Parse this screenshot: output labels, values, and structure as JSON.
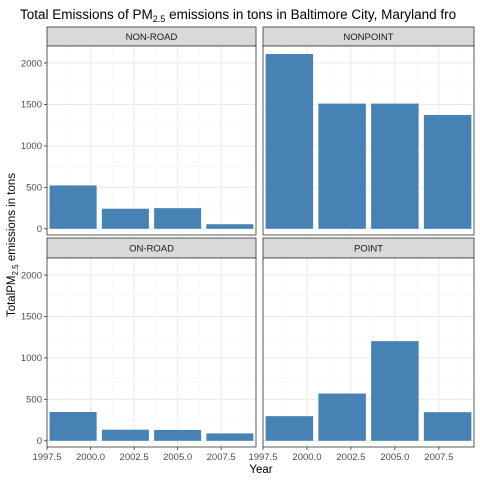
{
  "chart_data": {
    "type": "bar",
    "title": {
      "prefix": "Total Emissions of  PM",
      "subscript": "2.5",
      "suffix": " emissions in tons in Baltimore City, Maryland fro"
    },
    "xlabel": "Year",
    "ylabel": {
      "prefix": "TotalPM",
      "subscript": "2.5",
      "suffix": " emissions in tons"
    },
    "x": [
      1999,
      2002,
      2005,
      2008
    ],
    "xlim": [
      1997.5,
      2009.5
    ],
    "ylim": [
      -75,
      2205
    ],
    "x_ticks": [
      {
        "value": 1997.5,
        "label": "1997.5"
      },
      {
        "value": 2000.0,
        "label": "2000.0"
      },
      {
        "value": 2002.5,
        "label": "2002.5"
      },
      {
        "value": 2005.0,
        "label": "2005.0"
      },
      {
        "value": 2007.5,
        "label": "2007.5"
      }
    ],
    "y_ticks": [
      {
        "value": 0,
        "label": "0"
      },
      {
        "value": 500,
        "label": "500"
      },
      {
        "value": 1000,
        "label": "1000"
      },
      {
        "value": 1500,
        "label": "1500"
      },
      {
        "value": 2000,
        "label": "2000"
      }
    ],
    "bar_width_years": 2.7,
    "facets": [
      {
        "label": "NON-ROAD",
        "values": [
          523,
          242,
          249,
          55
        ]
      },
      {
        "label": "NONPOINT",
        "values": [
          2108,
          1510,
          1510,
          1373
        ]
      },
      {
        "label": "ON-ROAD",
        "values": [
          347,
          134,
          130,
          89
        ]
      },
      {
        "label": "POINT",
        "values": [
          297,
          570,
          1202,
          345
        ]
      }
    ],
    "grid": true,
    "colors": {
      "bar": "#4682b4",
      "panel_border": "#333333",
      "strip_fill": "#d9d9d9",
      "grid_major": "#ebebeb",
      "grid_minor": "#f5f5f5"
    }
  }
}
